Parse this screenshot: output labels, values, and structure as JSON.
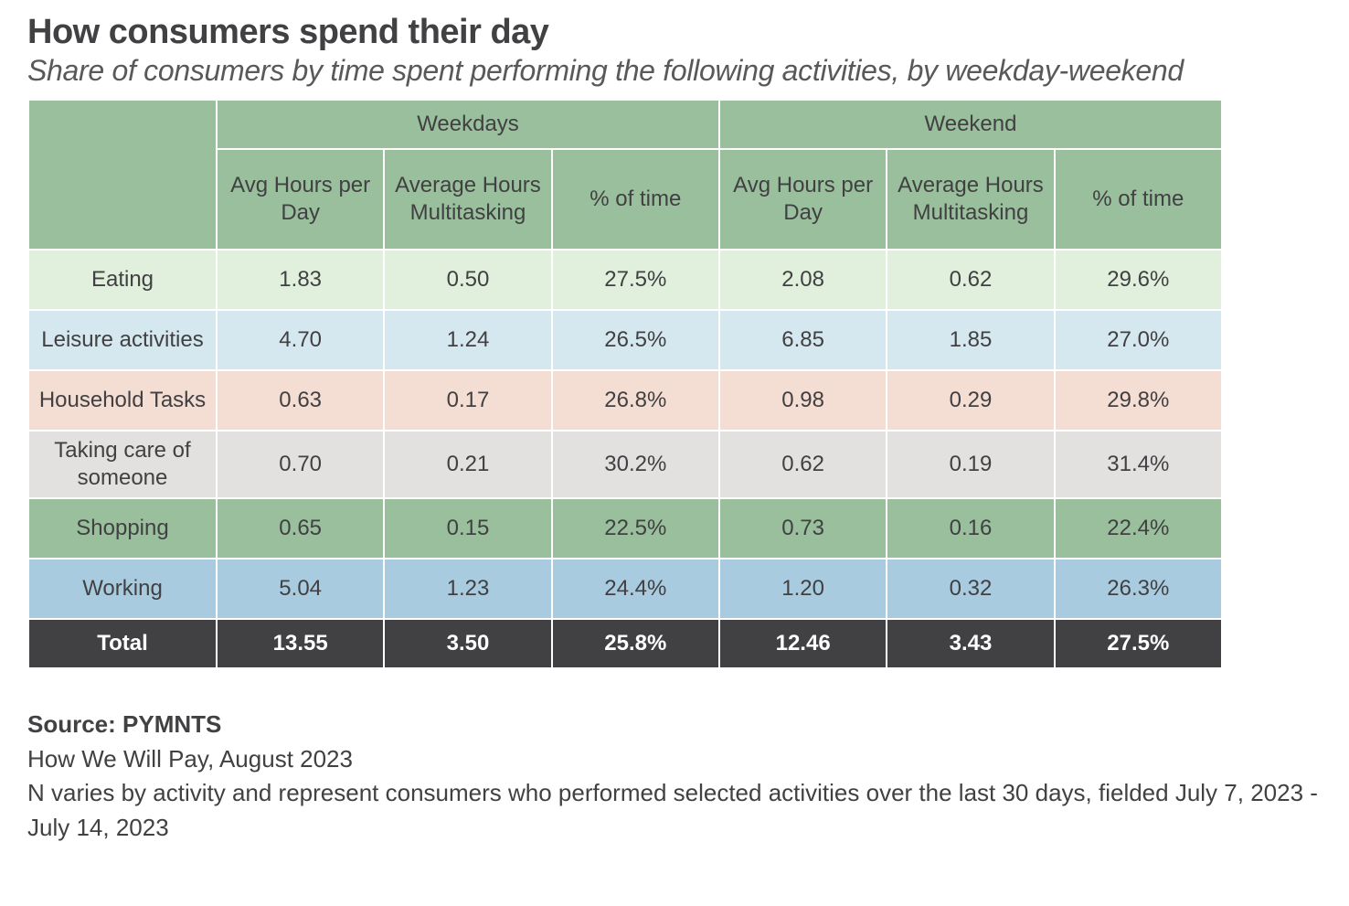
{
  "title": "How consumers spend their day",
  "subtitle": "Share of consumers by time spent performing the following activities, by weekday-weekend",
  "table": {
    "type": "table",
    "header_bg": "#99bf9c",
    "header_text_color": "#414042",
    "total_bg": "#414042",
    "total_text_color": "#ffffff",
    "border_color": "#ffffff",
    "cell_fontsize": 24,
    "groups": [
      "Weekdays",
      "Weekend"
    ],
    "subheaders": [
      "Avg Hours per Day",
      "Average Hours Multitasking",
      "% of time"
    ],
    "row_colors": [
      "#e0f0dd",
      "#d5e8ef",
      "#f4ddd3",
      "#e3e1e0",
      "#99bf9c",
      "#a9cbdf"
    ],
    "rows": [
      {
        "label": "Eating",
        "weekdays": [
          "1.83",
          "0.50",
          "27.5%"
        ],
        "weekend": [
          "2.08",
          "0.62",
          "29.6%"
        ]
      },
      {
        "label": "Leisure activities",
        "weekdays": [
          "4.70",
          "1.24",
          "26.5%"
        ],
        "weekend": [
          "6.85",
          "1.85",
          "27.0%"
        ]
      },
      {
        "label": "Household Tasks",
        "weekdays": [
          "0.63",
          "0.17",
          "26.8%"
        ],
        "weekend": [
          "0.98",
          "0.29",
          "29.8%"
        ]
      },
      {
        "label": "Taking care of someone",
        "weekdays": [
          "0.70",
          "0.21",
          "30.2%"
        ],
        "weekend": [
          "0.62",
          "0.19",
          "31.4%"
        ]
      },
      {
        "label": "Shopping",
        "weekdays": [
          "0.65",
          "0.15",
          "22.5%"
        ],
        "weekend": [
          "0.73",
          "0.16",
          "22.4%"
        ]
      },
      {
        "label": "Working",
        "weekdays": [
          "5.04",
          "1.23",
          "24.4%"
        ],
        "weekend": [
          "1.20",
          "0.32",
          "26.3%"
        ]
      }
    ],
    "total": {
      "label": "Total",
      "weekdays": [
        "13.55",
        "3.50",
        "25.8%"
      ],
      "weekend": [
        "12.46",
        "3.43",
        "27.5%"
      ]
    }
  },
  "footer": {
    "source_label": "Source: ",
    "source_name": "PYMNTS",
    "line2": "How We Will Pay, August 2023",
    "line3": "N varies by activity and represent consumers who performed selected activities over the last 30 days, fielded July 7, 2023 - July 14, 2023"
  }
}
